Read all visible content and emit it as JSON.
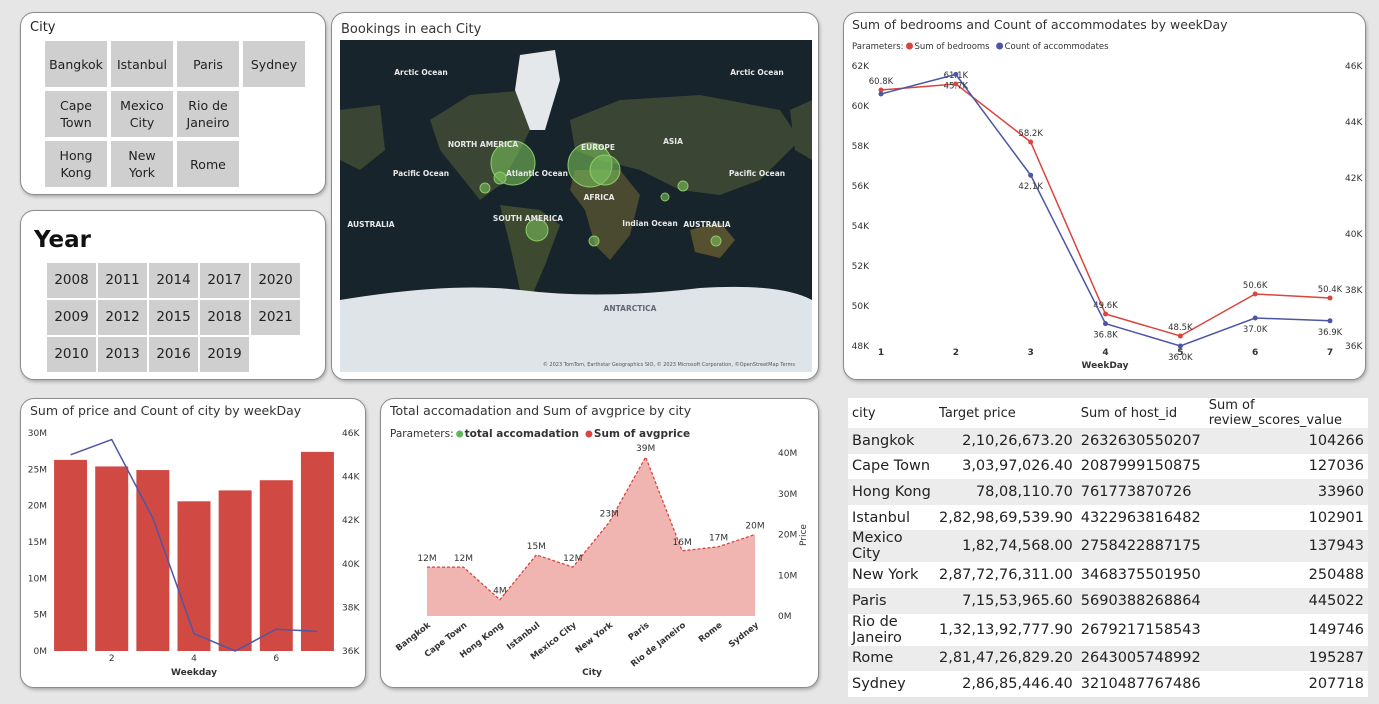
{
  "city_slicer": {
    "title": "City",
    "options": [
      "Bangkok",
      "Cape Town",
      "Hong Kong",
      "Istanbul",
      "Mexico City",
      "New York",
      "Paris",
      "Rio de Janeiro",
      "Rome",
      "Sydney"
    ]
  },
  "year_slicer": {
    "title": "Year",
    "options": [
      2008,
      2009,
      2010,
      2011,
      2012,
      2013,
      2014,
      2015,
      2016,
      2017,
      2018,
      2019,
      2020,
      2021
    ]
  },
  "map": {
    "title": "Bookings in each City",
    "labels": [
      "Arctic Ocean",
      "Arctic Ocean",
      "NORTH AMERICA",
      "EUROPE",
      "ASIA",
      "Pacific Ocean",
      "Atlantic Ocean",
      "Pacific Ocean",
      "AFRICA",
      "SOUTH AMERICA",
      "Indian Ocean",
      "AUSTRALIA",
      "AUSTRALIA",
      "ANTARCTICA"
    ],
    "attribution": "© 2023 TomTom, Earthstar Geographics SIO, © 2023 Microsoft Corporation, ©OpenStreetMap Terms"
  },
  "chart_data": [
    {
      "type": "line",
      "title": "Sum of bedrooms and Count of accommodates by weekDay",
      "legend_title": "Parameters:",
      "x_label": "WeekDay",
      "x": [
        1,
        2,
        3,
        4,
        5,
        6,
        7
      ],
      "xlim": [
        1,
        7
      ],
      "xticks": [
        1,
        2,
        3,
        4,
        5,
        6,
        7
      ],
      "ylim": [
        48000,
        62000
      ],
      "yticks": [
        {
          "value": 48000,
          "label": "48K"
        },
        {
          "value": 50000,
          "label": "50K"
        },
        {
          "value": 52000,
          "label": "52K"
        },
        {
          "value": 54000,
          "label": "54K"
        },
        {
          "value": 56000,
          "label": "56K"
        },
        {
          "value": 58000,
          "label": "58K"
        },
        {
          "value": 60000,
          "label": "60K"
        },
        {
          "value": 62000,
          "label": "62K"
        }
      ],
      "y2lim": [
        36000,
        46000
      ],
      "y2ticks": [
        {
          "value": 36000,
          "label": "36K"
        },
        {
          "value": 38000,
          "label": "38K"
        },
        {
          "value": 40000,
          "label": "40K"
        },
        {
          "value": 42000,
          "label": "42K"
        },
        {
          "value": 44000,
          "label": "44K"
        },
        {
          "value": 46000,
          "label": "46K"
        }
      ],
      "series": [
        {
          "name": "Sum of bedrooms",
          "color": "#d9453d",
          "values": [
            60800,
            61100,
            58200,
            49600,
            48500,
            50600,
            50400
          ],
          "value_labels": [
            "60.8K",
            "61.1K",
            "58.2K",
            "49.6K",
            "48.5K",
            "50.6K",
            "50.4K"
          ]
        },
        {
          "name": "Count of accommodates",
          "color": "#4d55a5",
          "axis": "y2",
          "values": [
            45000,
            45700,
            42100,
            36800,
            36000,
            37000,
            36900
          ],
          "value_labels": [
            null,
            "45.7K",
            "42.1K",
            "36.8K",
            "36.0K",
            "37.0K",
            "36.9K"
          ]
        }
      ]
    },
    {
      "type": "bar",
      "title": "Sum of price and Count of city by weekDay",
      "x_label": "Weekday",
      "x": [
        1,
        2,
        3,
        4,
        5,
        6,
        7
      ],
      "xlim": [
        0.5,
        7.5
      ],
      "xticks": [
        2,
        4,
        6
      ],
      "ylim": [
        0,
        30000000
      ],
      "yticks": [
        {
          "value": 0,
          "label": "0M"
        },
        {
          "value": 5000000,
          "label": "5M"
        },
        {
          "value": 10000000,
          "label": "10M"
        },
        {
          "value": 15000000,
          "label": "15M"
        },
        {
          "value": 20000000,
          "label": "20M"
        },
        {
          "value": 25000000,
          "label": "25M"
        },
        {
          "value": 30000000,
          "label": "30M"
        }
      ],
      "y2lim": [
        36000,
        46000
      ],
      "y2ticks": [
        {
          "value": 36000,
          "label": "36K"
        },
        {
          "value": 38000,
          "label": "38K"
        },
        {
          "value": 40000,
          "label": "40K"
        },
        {
          "value": 42000,
          "label": "42K"
        },
        {
          "value": 44000,
          "label": "44K"
        },
        {
          "value": 46000,
          "label": "46K"
        }
      ],
      "series": [
        {
          "color": "#d04a43",
          "values": [
            26300000,
            25400000,
            24900000,
            20600000,
            22100000,
            23500000,
            27400000
          ]
        },
        {
          "color": "#4f57a3",
          "axis": "y2",
          "values": [
            45000,
            45700,
            42100,
            36800,
            36000,
            37000,
            36900
          ]
        }
      ]
    },
    {
      "type": "area",
      "title": "Total accomadation and Sum of avgprice by city",
      "legend_title": "Parameters:",
      "x_label": "City",
      "y2_label": "Price",
      "categories": [
        "Bangkok",
        "Cape Town",
        "Hong Kong",
        "Istanbul",
        "Mexico City",
        "New York",
        "Paris",
        "Rio de Janeiro",
        "Rome",
        "Sydney"
      ],
      "y2lim": [
        0,
        40000000
      ],
      "y2ticks": [
        {
          "value": 0,
          "label": "0M"
        },
        {
          "value": 10000000,
          "label": "10M"
        },
        {
          "value": 20000000,
          "label": "20M"
        },
        {
          "value": 30000000,
          "label": "30M"
        },
        {
          "value": 40000000,
          "label": "40M"
        }
      ],
      "series": [
        {
          "name": "total accomadation",
          "color": "#5cb85c",
          "values": [
            null,
            null,
            null,
            null,
            null,
            null,
            null,
            null,
            null,
            null
          ]
        },
        {
          "name": "Sum of avgprice",
          "color": "#d9453d",
          "axis": "y2",
          "values": [
            12000000,
            12000000,
            4000000,
            15000000,
            12000000,
            23000000,
            39000000,
            16000000,
            17000000,
            20000000
          ],
          "value_labels": [
            "12M",
            "12M",
            "4M",
            "15M",
            "12M",
            "23M",
            "39M",
            "16M",
            "17M",
            "20M"
          ]
        }
      ]
    }
  ],
  "table": {
    "columns": [
      "city",
      "Target price",
      "Sum of host_id",
      "Sum of review_scores_value"
    ],
    "rows": [
      [
        "Bangkok",
        "2,10,26,673.20",
        "2632630550207",
        "104266"
      ],
      [
        "Cape Town",
        "3,03,97,026.40",
        "2087999150875",
        "127036"
      ],
      [
        "Hong Kong",
        "78,08,110.70",
        "761773870726",
        "33960"
      ],
      [
        "Istanbul",
        "2,82,98,69,539.90",
        "4322963816482",
        "102901"
      ],
      [
        "Mexico City",
        "1,82,74,568.00",
        "2758422887175",
        "137943"
      ],
      [
        "New York",
        "2,87,72,76,311.00",
        "3468375501950",
        "250488"
      ],
      [
        "Paris",
        "7,15,53,965.60",
        "5690388268864",
        "445022"
      ],
      [
        "Rio de Janeiro",
        "1,32,13,92,777.90",
        "2679217158543",
        "149746"
      ],
      [
        "Rome",
        "2,81,47,26,829.20",
        "2643005748992",
        "195287"
      ],
      [
        "Sydney",
        "2,86,85,446.40",
        "3210487767486",
        "207718"
      ]
    ]
  }
}
